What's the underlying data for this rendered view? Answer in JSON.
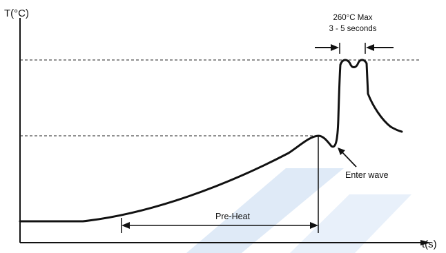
{
  "chart_data": {
    "type": "line",
    "title": "",
    "xlabel": "t(s)",
    "ylabel": "T(°C)",
    "annotations": {
      "max_line1": "260°C Max",
      "max_line2": "3 - 5 seconds",
      "enter_wave": "Enter wave",
      "preheat": "Pre-Heat"
    },
    "series": [
      {
        "values": []
      }
    ],
    "grid": false,
    "legend": "none"
  },
  "colors": {
    "axis": "#111111",
    "watermark": "#dce8f6"
  }
}
